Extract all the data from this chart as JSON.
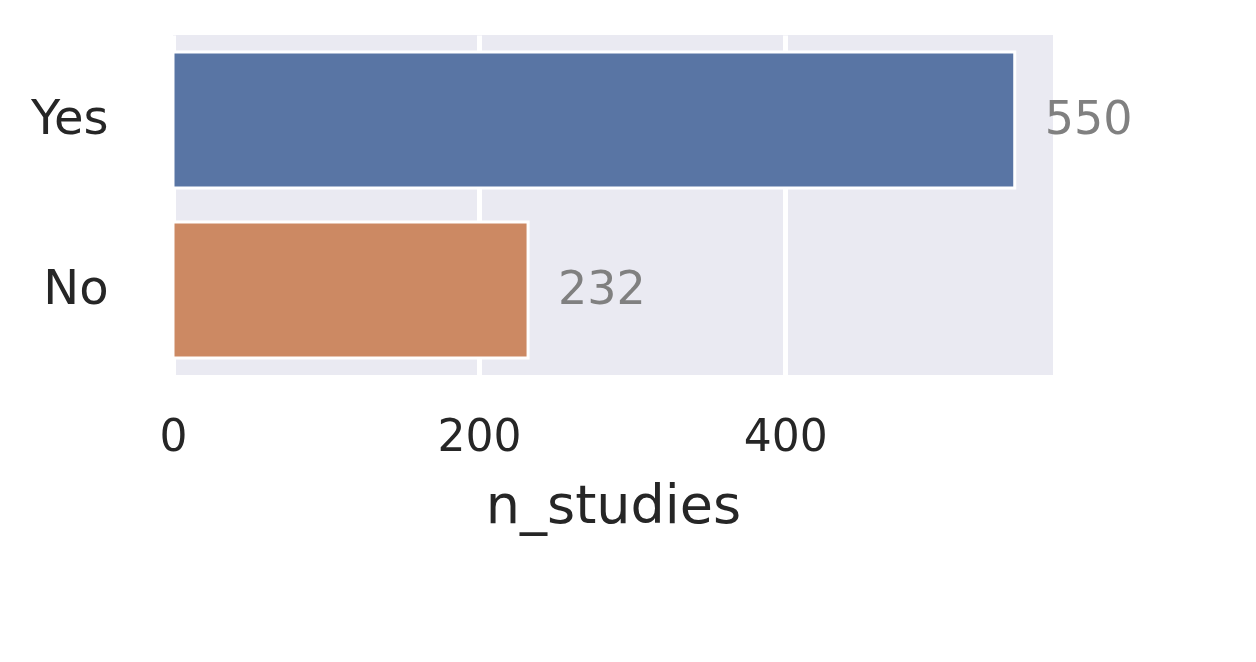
{
  "chart_data": {
    "type": "bar",
    "orientation": "horizontal",
    "categories": [
      "Yes",
      "No"
    ],
    "values": [
      550,
      232
    ],
    "colors": [
      "#5975a4",
      "#cc8963"
    ],
    "xlabel": "n_studies",
    "xlim": [
      0,
      575
    ],
    "xticks": [
      0,
      200,
      400
    ],
    "grid": "x",
    "data_labels": true
  }
}
